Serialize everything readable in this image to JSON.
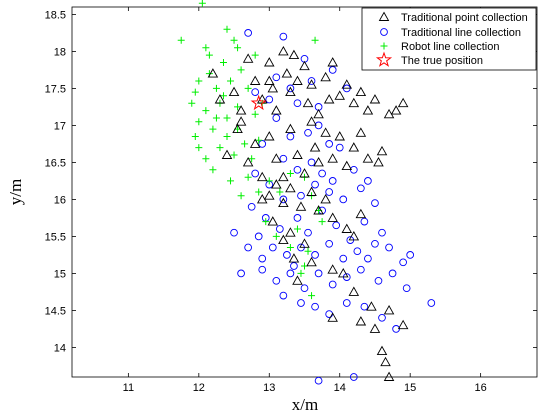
{
  "chart_data": {
    "type": "scatter",
    "xlabel": "x/m",
    "ylabel": "y/m",
    "xlim": [
      10.2,
      16.8
    ],
    "ylim": [
      13.6,
      18.6
    ],
    "xticks": [
      "11",
      "12",
      "13",
      "14",
      "15",
      "16"
    ],
    "yticks": [
      "14",
      "14.5",
      "15",
      "15.5",
      "16",
      "16.5",
      "17",
      "17.5",
      "18",
      "18.5"
    ],
    "grid": false,
    "legend_position": "top-right",
    "series": [
      {
        "name": "Traditional point collection",
        "marker": "triangle",
        "color": "#000000",
        "points": [
          [
            12.2,
            17.7
          ],
          [
            12.3,
            17.35
          ],
          [
            12.5,
            17.45
          ],
          [
            12.6,
            17.2
          ],
          [
            12.7,
            17.9
          ],
          [
            12.8,
            17.6
          ],
          [
            12.9,
            17.35
          ],
          [
            13.0,
            17.85
          ],
          [
            13.05,
            17.5
          ],
          [
            13.1,
            17.2
          ],
          [
            13.2,
            18.0
          ],
          [
            13.25,
            17.7
          ],
          [
            13.3,
            17.45
          ],
          [
            13.35,
            17.95
          ],
          [
            13.4,
            17.6
          ],
          [
            13.5,
            17.8
          ],
          [
            13.55,
            17.3
          ],
          [
            13.6,
            17.55
          ],
          [
            13.7,
            17.15
          ],
          [
            13.8,
            17.65
          ],
          [
            13.85,
            17.35
          ],
          [
            13.9,
            17.85
          ],
          [
            14.0,
            17.4
          ],
          [
            14.1,
            17.55
          ],
          [
            14.2,
            17.3
          ],
          [
            14.3,
            17.45
          ],
          [
            14.4,
            17.2
          ],
          [
            14.5,
            17.35
          ],
          [
            14.6,
            16.65
          ],
          [
            14.7,
            17.15
          ],
          [
            14.8,
            17.2
          ],
          [
            14.9,
            17.3
          ],
          [
            12.4,
            16.6
          ],
          [
            12.55,
            16.95
          ],
          [
            12.7,
            16.5
          ],
          [
            12.8,
            16.75
          ],
          [
            12.9,
            16.3
          ],
          [
            13.0,
            16.85
          ],
          [
            13.1,
            16.55
          ],
          [
            13.2,
            16.3
          ],
          [
            13.3,
            16.95
          ],
          [
            13.4,
            16.6
          ],
          [
            13.5,
            16.35
          ],
          [
            13.6,
            17.05
          ],
          [
            13.65,
            16.7
          ],
          [
            13.7,
            16.5
          ],
          [
            13.8,
            16.9
          ],
          [
            13.9,
            16.55
          ],
          [
            14.0,
            16.85
          ],
          [
            14.1,
            16.45
          ],
          [
            14.2,
            16.7
          ],
          [
            14.3,
            16.9
          ],
          [
            14.4,
            16.55
          ],
          [
            14.55,
            16.5
          ],
          [
            13.0,
            16.05
          ],
          [
            13.1,
            16.2
          ],
          [
            13.2,
            15.95
          ],
          [
            13.3,
            16.15
          ],
          [
            13.45,
            15.9
          ],
          [
            13.6,
            16.1
          ],
          [
            13.7,
            15.85
          ],
          [
            13.8,
            16.0
          ],
          [
            13.9,
            15.75
          ],
          [
            14.1,
            15.6
          ],
          [
            14.2,
            15.5
          ],
          [
            14.3,
            15.8
          ],
          [
            13.2,
            15.45
          ],
          [
            13.3,
            15.55
          ],
          [
            13.35,
            15.2
          ],
          [
            13.5,
            15.4
          ],
          [
            13.6,
            15.15
          ],
          [
            13.4,
            14.9
          ],
          [
            13.9,
            15.05
          ],
          [
            14.05,
            15.0
          ],
          [
            14.2,
            14.75
          ],
          [
            14.3,
            14.35
          ],
          [
            14.45,
            14.55
          ],
          [
            14.5,
            14.25
          ],
          [
            14.7,
            14.5
          ],
          [
            14.6,
            13.95
          ],
          [
            14.9,
            14.3
          ],
          [
            14.65,
            13.8
          ],
          [
            14.7,
            13.6
          ],
          [
            13.9,
            14.4
          ],
          [
            12.9,
            16.0
          ],
          [
            13.05,
            15.7
          ],
          [
            12.6,
            17.05
          ],
          [
            13.0,
            17.6
          ]
        ]
      },
      {
        "name": "Traditional line collection",
        "marker": "circle",
        "color": "#0000ff",
        "points": [
          [
            12.7,
            18.25
          ],
          [
            13.2,
            18.2
          ],
          [
            13.5,
            17.9
          ],
          [
            13.1,
            17.65
          ],
          [
            13.3,
            17.5
          ],
          [
            13.6,
            17.6
          ],
          [
            13.9,
            17.75
          ],
          [
            14.1,
            17.5
          ],
          [
            13.4,
            17.3
          ],
          [
            13.7,
            17.25
          ],
          [
            12.8,
            17.45
          ],
          [
            13.0,
            17.35
          ],
          [
            13.1,
            17.1
          ],
          [
            13.3,
            16.85
          ],
          [
            13.55,
            16.9
          ],
          [
            13.7,
            17.0
          ],
          [
            13.85,
            16.75
          ],
          [
            14.0,
            16.7
          ],
          [
            12.9,
            16.75
          ],
          [
            13.2,
            16.55
          ],
          [
            13.4,
            16.4
          ],
          [
            13.6,
            16.5
          ],
          [
            13.75,
            16.35
          ],
          [
            13.9,
            16.25
          ],
          [
            14.2,
            16.4
          ],
          [
            14.3,
            16.15
          ],
          [
            12.8,
            16.35
          ],
          [
            13.0,
            16.2
          ],
          [
            13.2,
            16.0
          ],
          [
            13.45,
            16.05
          ],
          [
            13.65,
            16.2
          ],
          [
            13.85,
            16.1
          ],
          [
            14.05,
            16.0
          ],
          [
            14.4,
            16.25
          ],
          [
            14.5,
            15.95
          ],
          [
            12.75,
            15.9
          ],
          [
            12.95,
            15.75
          ],
          [
            13.15,
            15.6
          ],
          [
            13.4,
            15.75
          ],
          [
            13.55,
            15.55
          ],
          [
            13.75,
            15.85
          ],
          [
            13.95,
            15.65
          ],
          [
            14.15,
            15.45
          ],
          [
            14.35,
            15.7
          ],
          [
            14.6,
            15.55
          ],
          [
            12.5,
            15.55
          ],
          [
            12.7,
            15.35
          ],
          [
            12.85,
            15.5
          ],
          [
            13.05,
            15.35
          ],
          [
            13.25,
            15.25
          ],
          [
            13.45,
            15.35
          ],
          [
            13.65,
            15.25
          ],
          [
            13.85,
            15.4
          ],
          [
            14.05,
            15.2
          ],
          [
            14.25,
            15.3
          ],
          [
            14.5,
            15.4
          ],
          [
            14.7,
            15.35
          ],
          [
            14.9,
            15.15
          ],
          [
            15.0,
            15.25
          ],
          [
            12.6,
            15.0
          ],
          [
            12.9,
            15.05
          ],
          [
            13.1,
            14.9
          ],
          [
            13.3,
            15.0
          ],
          [
            13.5,
            14.8
          ],
          [
            13.7,
            15.0
          ],
          [
            13.9,
            14.85
          ],
          [
            14.1,
            14.95
          ],
          [
            14.3,
            15.05
          ],
          [
            14.55,
            14.9
          ],
          [
            14.75,
            15.0
          ],
          [
            14.95,
            14.8
          ],
          [
            13.2,
            14.7
          ],
          [
            13.45,
            14.6
          ],
          [
            13.65,
            14.55
          ],
          [
            13.85,
            14.45
          ],
          [
            14.1,
            14.6
          ],
          [
            14.35,
            14.55
          ],
          [
            14.6,
            14.4
          ],
          [
            14.8,
            14.25
          ],
          [
            15.3,
            14.6
          ],
          [
            13.7,
            13.55
          ],
          [
            14.2,
            13.6
          ],
          [
            12.9,
            15.2
          ],
          [
            13.35,
            15.1
          ],
          [
            14.4,
            15.2
          ]
        ]
      },
      {
        "name": "Robot line collection",
        "marker": "plus",
        "color": "#00ee00",
        "points": [
          [
            12.05,
            18.65
          ],
          [
            11.75,
            18.15
          ],
          [
            12.4,
            18.3
          ],
          [
            12.55,
            18.05
          ],
          [
            12.35,
            17.85
          ],
          [
            12.15,
            17.7
          ],
          [
            12.0,
            17.6
          ],
          [
            11.95,
            17.45
          ],
          [
            12.25,
            17.5
          ],
          [
            12.45,
            17.6
          ],
          [
            12.6,
            17.75
          ],
          [
            12.7,
            17.5
          ],
          [
            12.3,
            17.3
          ],
          [
            12.1,
            17.2
          ],
          [
            11.9,
            17.3
          ],
          [
            12.0,
            17.05
          ],
          [
            11.95,
            16.85
          ],
          [
            12.2,
            16.95
          ],
          [
            12.4,
            17.1
          ],
          [
            12.55,
            16.95
          ],
          [
            12.65,
            16.75
          ],
          [
            12.5,
            16.6
          ],
          [
            12.3,
            16.7
          ],
          [
            12.1,
            16.55
          ],
          [
            12.75,
            16.55
          ],
          [
            12.85,
            16.8
          ],
          [
            12.7,
            16.3
          ],
          [
            12.45,
            16.25
          ],
          [
            12.6,
            16.05
          ],
          [
            12.85,
            16.1
          ],
          [
            13.0,
            16.25
          ],
          [
            13.15,
            16.1
          ],
          [
            12.35,
            17.4
          ],
          [
            12.8,
            17.15
          ],
          [
            12.15,
            17.95
          ],
          [
            12.55,
            17.25
          ],
          [
            12.0,
            16.7
          ],
          [
            12.2,
            16.4
          ],
          [
            12.4,
            16.85
          ],
          [
            13.3,
            16.35
          ],
          [
            13.5,
            16.3
          ],
          [
            13.6,
            16.05
          ],
          [
            13.7,
            15.85
          ],
          [
            13.75,
            15.7
          ],
          [
            13.4,
            15.6
          ],
          [
            13.3,
            15.35
          ],
          [
            13.5,
            15.1
          ],
          [
            13.55,
            15.3
          ],
          [
            13.6,
            14.7
          ],
          [
            12.8,
            17.95
          ],
          [
            12.5,
            18.15
          ],
          [
            12.9,
            17.3
          ],
          [
            12.25,
            17.1
          ],
          [
            12.1,
            18.05
          ],
          [
            13.1,
            15.5
          ],
          [
            12.95,
            15.7
          ],
          [
            13.65,
            18.15
          ],
          [
            13.45,
            15.0
          ]
        ]
      },
      {
        "name": "The true position",
        "marker": "star",
        "color": "#ff0000",
        "points": [
          [
            12.85,
            17.3
          ]
        ]
      }
    ]
  }
}
